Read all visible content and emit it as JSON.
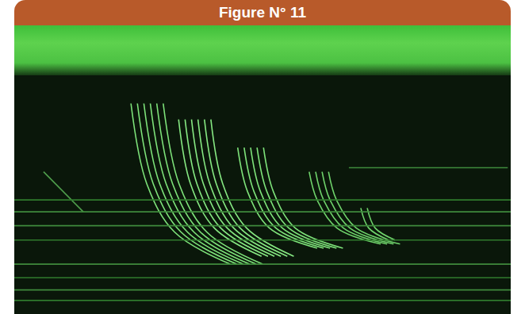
{
  "chart_data": {
    "type": "line",
    "title": "Figure N° 11",
    "tick_labels": false,
    "grid": false,
    "xlim": [
      0,
      100
    ],
    "ylim": [
      0,
      100
    ],
    "xticks": [],
    "yticks": [],
    "series": [
      {
        "x": [
          23.5,
          26.7,
          32.3,
          43.5
        ],
        "values": [
          88.2,
          54.5,
          34.3,
          20.9
        ],
        "color": "#7ee37a"
      },
      {
        "x": [
          24.8,
          28.0,
          33.6,
          44.8
        ],
        "values": [
          88.2,
          54.5,
          34.3,
          20.9
        ],
        "color": "#7ee37a"
      },
      {
        "x": [
          26.1,
          29.3,
          34.9,
          46.1
        ],
        "values": [
          88.2,
          54.5,
          34.3,
          20.9
        ],
        "color": "#7ee37a"
      },
      {
        "x": [
          27.4,
          30.6,
          36.2,
          47.4
        ],
        "values": [
          88.2,
          54.5,
          34.3,
          20.9
        ],
        "color": "#7ee37a"
      },
      {
        "x": [
          28.7,
          31.9,
          37.5,
          48.7
        ],
        "values": [
          88.2,
          54.5,
          34.3,
          20.9
        ],
        "color": "#7ee37a"
      },
      {
        "x": [
          30.0,
          33.2,
          38.8,
          50.0
        ],
        "values": [
          88.2,
          54.5,
          34.3,
          20.9
        ],
        "color": "#7ee37a"
      },
      {
        "x": [
          33.1,
          35.5,
          40.3,
          49.8
        ],
        "values": [
          81.5,
          54.5,
          36.0,
          24.2
        ],
        "color": "#86e882"
      },
      {
        "x": [
          34.4,
          36.8,
          41.6,
          51.1
        ],
        "values": [
          81.5,
          54.5,
          36.0,
          24.2
        ],
        "color": "#86e882"
      },
      {
        "x": [
          35.7,
          38.1,
          42.9,
          52.4
        ],
        "values": [
          81.5,
          54.5,
          36.0,
          24.2
        ],
        "color": "#86e882"
      },
      {
        "x": [
          37.0,
          39.4,
          44.2,
          53.7
        ],
        "values": [
          81.5,
          54.5,
          36.0,
          24.2
        ],
        "color": "#86e882"
      },
      {
        "x": [
          38.3,
          40.7,
          45.5,
          55.0
        ],
        "values": [
          81.5,
          54.5,
          36.0,
          24.2
        ],
        "color": "#86e882"
      },
      {
        "x": [
          39.6,
          42.0,
          46.8,
          56.3
        ],
        "values": [
          81.5,
          54.5,
          36.0,
          24.2
        ],
        "color": "#86e882"
      },
      {
        "x": [
          45.0,
          47.0,
          51.4,
          61.0
        ],
        "values": [
          69.7,
          51.2,
          36.0,
          27.6
        ],
        "color": "#7ee37a"
      },
      {
        "x": [
          46.3,
          48.3,
          52.7,
          62.3
        ],
        "values": [
          69.7,
          51.2,
          36.0,
          27.6
        ],
        "color": "#7ee37a"
      },
      {
        "x": [
          47.6,
          49.6,
          54.0,
          63.6
        ],
        "values": [
          69.7,
          51.2,
          36.0,
          27.6
        ],
        "color": "#7ee37a"
      },
      {
        "x": [
          48.9,
          50.9,
          55.3,
          64.9
        ],
        "values": [
          69.7,
          51.2,
          36.0,
          27.6
        ],
        "color": "#7ee37a"
      },
      {
        "x": [
          50.2,
          52.2,
          56.6,
          66.2
        ],
        "values": [
          69.7,
          51.2,
          36.0,
          27.6
        ],
        "color": "#7ee37a"
      },
      {
        "x": [
          59.4,
          61.0,
          65.0,
          73.8
        ],
        "values": [
          59.6,
          47.8,
          36.0,
          29.3
        ],
        "color": "#6fd36b"
      },
      {
        "x": [
          60.7,
          62.3,
          66.3,
          75.1
        ],
        "values": [
          59.6,
          47.8,
          36.0,
          29.3
        ],
        "color": "#6fd36b"
      },
      {
        "x": [
          62.0,
          63.6,
          67.6,
          76.4
        ],
        "values": [
          59.6,
          47.8,
          36.0,
          29.3
        ],
        "color": "#6fd36b"
      },
      {
        "x": [
          63.3,
          64.9,
          68.9,
          77.7
        ],
        "values": [
          59.6,
          47.8,
          36.0,
          29.3
        ],
        "color": "#6fd36b"
      },
      {
        "x": [
          69.8,
          71.4,
          75.4
        ],
        "values": [
          44.4,
          36.0,
          31.0
        ],
        "color": "#6fd36b"
      },
      {
        "x": [
          71.1,
          72.7,
          76.7
        ],
        "values": [
          44.4,
          36.0,
          31.0
        ],
        "color": "#6fd36b"
      },
      {
        "x": [
          5.9,
          13.9
        ],
        "values": [
          59.6,
          42.8
        ],
        "color": "#4f9f4c"
      },
      {
        "x": [
          67.4,
          99.4
        ],
        "values": [
          61.3,
          61.3
        ],
        "color": "#3f8a3c"
      },
      {
        "x": [
          0,
          100
        ],
        "values": [
          47.8,
          47.8
        ],
        "color": "#2f7a2c"
      },
      {
        "x": [
          0,
          100
        ],
        "values": [
          42.8,
          42.8
        ],
        "color": "#3f8a3c"
      },
      {
        "x": [
          0,
          100
        ],
        "values": [
          37.0,
          37.0
        ],
        "color": "#3f8a3c"
      },
      {
        "x": [
          0,
          100
        ],
        "values": [
          31.0,
          31.0
        ],
        "color": "#2f7a2c"
      },
      {
        "x": [
          0,
          100
        ],
        "values": [
          20.9,
          20.9
        ],
        "color": "#3f8a3c"
      },
      {
        "x": [
          0,
          100
        ],
        "values": [
          15.2,
          15.2
        ],
        "color": "#2f7a2c"
      },
      {
        "x": [
          0,
          100
        ],
        "values": [
          10.1,
          10.1
        ],
        "color": "#3f8a3c"
      },
      {
        "x": [
          0,
          100
        ],
        "values": [
          5.7,
          5.7
        ],
        "color": "#2f7a2c"
      }
    ]
  }
}
